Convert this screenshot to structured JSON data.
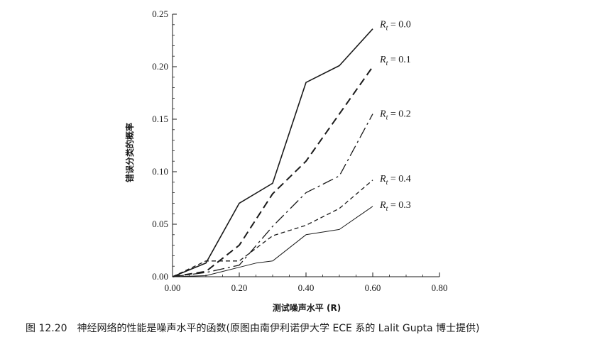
{
  "caption": "图 12.20　神经网络的性能是噪声水平的函数(原图由南伊利诺伊大学 ECE 系的 Lalit Gupta 博士提供)",
  "chart_data": {
    "type": "line",
    "title": "",
    "xlabel": "测试噪声水平 (R)",
    "ylabel": "错误分类的概率",
    "xlim": [
      0.0,
      0.8
    ],
    "ylim": [
      0.0,
      0.25
    ],
    "xticks": [
      "0.00",
      "0.20",
      "0.40",
      "0.60",
      "0.80"
    ],
    "yticks": [
      "0.00",
      "0.05",
      "0.10",
      "0.15",
      "0.20",
      "0.25"
    ],
    "grid": false,
    "series": [
      {
        "name": "R_t = 0.0",
        "symbol": "R",
        "subscript": "t",
        "value_text": " = 0.0",
        "style": "solid",
        "stroke_width": 1.6,
        "x": [
          0.0,
          0.1,
          0.2,
          0.3,
          0.4,
          0.5,
          0.6
        ],
        "y": [
          0.0,
          0.013,
          0.07,
          0.089,
          0.185,
          0.201,
          0.236
        ]
      },
      {
        "name": "R_t = 0.1",
        "symbol": "R",
        "subscript": "t",
        "value_text": " = 0.1",
        "style": "dash",
        "stroke_width": 2.0,
        "x": [
          0.0,
          0.1,
          0.2,
          0.3,
          0.4,
          0.5,
          0.6
        ],
        "y": [
          0.0,
          0.005,
          0.03,
          0.079,
          0.11,
          0.155,
          0.2
        ]
      },
      {
        "name": "R_t = 0.2",
        "symbol": "R",
        "subscript": "t",
        "value_text": " = 0.2",
        "style": "dashdot",
        "stroke_width": 1.3,
        "x": [
          0.0,
          0.1,
          0.2,
          0.3,
          0.4,
          0.5,
          0.6
        ],
        "y": [
          0.0,
          0.004,
          0.011,
          0.048,
          0.08,
          0.096,
          0.155
        ]
      },
      {
        "name": "R_t = 0.4",
        "symbol": "R",
        "subscript": "t",
        "value_text": " = 0.4",
        "style": "shortdash",
        "stroke_width": 1.3,
        "x": [
          0.0,
          0.1,
          0.2,
          0.3,
          0.4,
          0.5,
          0.6
        ],
        "y": [
          0.0,
          0.015,
          0.015,
          0.039,
          0.049,
          0.065,
          0.092
        ]
      },
      {
        "name": "R_t = 0.3",
        "symbol": "R",
        "subscript": "t",
        "value_text": " = 0.3",
        "style": "solid",
        "stroke_width": 1.0,
        "x": [
          0.0,
          0.1,
          0.2,
          0.25,
          0.3,
          0.4,
          0.5,
          0.6
        ],
        "y": [
          0.0,
          0.001,
          0.009,
          0.013,
          0.015,
          0.04,
          0.045,
          0.067
        ]
      }
    ]
  }
}
